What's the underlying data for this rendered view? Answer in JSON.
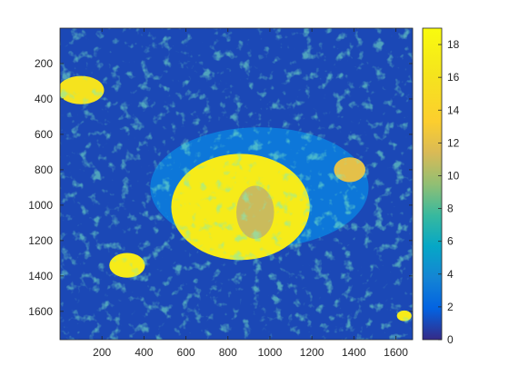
{
  "chart_data": {
    "type": "heatmap",
    "title": "",
    "xlabel": "",
    "ylabel": "",
    "xlim": [
      0,
      1680
    ],
    "ylim": [
      1760,
      0
    ],
    "x_ticks": [
      "200",
      "400",
      "600",
      "800",
      "1000",
      "1200",
      "1400",
      "1600"
    ],
    "y_ticks": [
      "200",
      "400",
      "600",
      "800",
      "1000",
      "1200",
      "1400",
      "1600"
    ],
    "colorbar": {
      "colormap": "parula",
      "range": [
        0,
        19
      ],
      "ticks": [
        "0",
        "2",
        "4",
        "6",
        "8",
        "10",
        "12",
        "14",
        "16",
        "18"
      ]
    },
    "background_value": 1,
    "regions": [
      {
        "label": "main-island",
        "x": 860,
        "y": 1010,
        "rx": 330,
        "ry": 300,
        "value": 17
      },
      {
        "label": "island-core",
        "x": 930,
        "y": 1040,
        "rx": 90,
        "ry": 150,
        "value": 11
      },
      {
        "label": "halo",
        "x": 950,
        "y": 900,
        "rx": 520,
        "ry": 340,
        "value": 3
      },
      {
        "label": "east-lobe",
        "x": 1380,
        "y": 800,
        "rx": 75,
        "ry": 70,
        "value": 12
      },
      {
        "label": "south-west-blob",
        "x": 320,
        "y": 1340,
        "rx": 85,
        "ry": 70,
        "value": 17
      },
      {
        "label": "north-west-patch",
        "x": 100,
        "y": 350,
        "rx": 110,
        "ry": 80,
        "value": 16
      },
      {
        "label": "south-east-spot",
        "x": 1640,
        "y": 1625,
        "rx": 35,
        "ry": 30,
        "value": 17
      }
    ]
  }
}
